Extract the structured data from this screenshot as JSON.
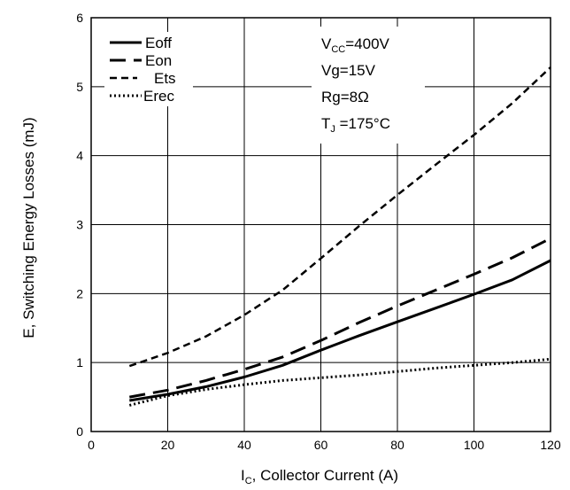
{
  "chart_data": {
    "type": "line",
    "xlabel_main": "I",
    "xlabel_sub": "C",
    "xlabel_rest": ", Collector Current (A)",
    "ylabel": "E, Switching Energy Losses (mJ)",
    "xlim": [
      0,
      120
    ],
    "ylim": [
      0,
      6
    ],
    "x_ticks": [
      "0",
      "20",
      "40",
      "60",
      "80",
      "100",
      "120"
    ],
    "y_ticks": [
      "0",
      "1",
      "2",
      "3",
      "4",
      "5",
      "6"
    ],
    "grid": true,
    "legend_position": "top-left",
    "series": [
      {
        "name": "Eoff",
        "style": "solid",
        "x": [
          10,
          20,
          30,
          40,
          50,
          60,
          70,
          80,
          90,
          100,
          110,
          120
        ],
        "y": [
          0.45,
          0.54,
          0.65,
          0.79,
          0.96,
          1.18,
          1.39,
          1.59,
          1.79,
          1.99,
          2.2,
          2.48
        ]
      },
      {
        "name": "Eon",
        "style": "longdash",
        "x": [
          10,
          20,
          30,
          40,
          50,
          60,
          70,
          80,
          90,
          100,
          110,
          120
        ],
        "y": [
          0.5,
          0.6,
          0.74,
          0.9,
          1.08,
          1.32,
          1.58,
          1.82,
          2.05,
          2.28,
          2.52,
          2.8
        ]
      },
      {
        "name": "Ets",
        "style": "shortdash",
        "x": [
          10,
          20,
          30,
          40,
          50,
          60,
          70,
          80,
          90,
          100,
          110,
          120
        ],
        "y": [
          0.95,
          1.14,
          1.38,
          1.69,
          2.05,
          2.51,
          2.98,
          3.43,
          3.87,
          4.3,
          4.76,
          5.28
        ]
      },
      {
        "name": "Erec",
        "style": "dotted",
        "x": [
          10,
          20,
          30,
          40,
          50,
          60,
          70,
          80,
          90,
          100,
          110,
          120
        ],
        "y": [
          0.38,
          0.52,
          0.61,
          0.68,
          0.74,
          0.78,
          0.82,
          0.87,
          0.92,
          0.96,
          1.0,
          1.05
        ]
      }
    ],
    "conditions": [
      {
        "main": "V",
        "sub": "CC",
        "rest": "=400V"
      },
      {
        "main": "Vg=15V",
        "sub": "",
        "rest": ""
      },
      {
        "main": "Rg=8Ω",
        "sub": "",
        "rest": ""
      },
      {
        "main": "T",
        "sub": "J",
        "rest": " =175°C"
      }
    ]
  }
}
